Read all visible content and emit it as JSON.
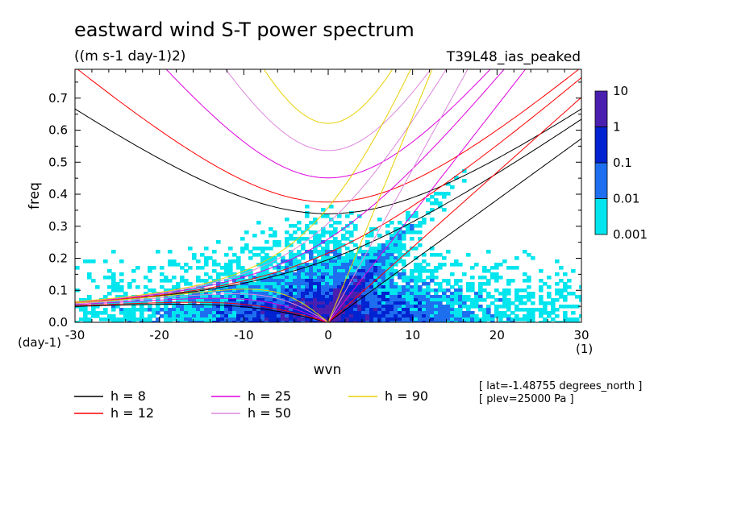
{
  "chart_data": {
    "type": "heatmap",
    "title": "eastward wind S-T power spectrum",
    "subtitle": "((m s-1 day-1)2)",
    "run_label": "T39L48_ias_peaked",
    "xlabel": "wvn",
    "ylabel": "freq",
    "x_unit": "(1)",
    "y_unit": "(day-1)",
    "xlim": [
      -30,
      30
    ],
    "ylim": [
      0,
      0.79
    ],
    "x_ticks": [
      -30,
      -20,
      -10,
      0,
      10,
      20,
      30
    ],
    "x_tick_labels": [
      "-30",
      "-20",
      "-10",
      "0",
      "10",
      "20",
      "30"
    ],
    "y_ticks": [
      0,
      0.1,
      0.2,
      0.3,
      0.4,
      0.5,
      0.6,
      0.7
    ],
    "y_tick_labels": [
      "0.0",
      "0.1",
      "0.2",
      "0.3",
      "0.4",
      "0.5",
      "0.6",
      "0.7"
    ],
    "colorbar": {
      "levels": [
        0.001,
        0.01,
        0.1,
        1,
        10
      ],
      "labels": [
        "0.001",
        "0.01",
        "0.1",
        "1",
        "10"
      ],
      "colors": [
        "#00e5ee",
        "#1e6ff0",
        "#0022d0",
        "#4a1fb0"
      ]
    },
    "dispersion_curves": [
      {
        "name": "h = 8",
        "h": 8,
        "color": "#000000"
      },
      {
        "name": "h = 12",
        "h": 12,
        "color": "#ff0000"
      },
      {
        "name": "h = 25",
        "h": 25,
        "color": "#e000e0"
      },
      {
        "name": "h = 50",
        "h": 50,
        "color": "#dd88dd"
      },
      {
        "name": "h = 90",
        "h": 90,
        "color": "#e8d000"
      }
    ],
    "annotations": [
      "[ lat=-1.48755 degrees_north ]",
      "[ plev=25000 Pa ]"
    ]
  }
}
